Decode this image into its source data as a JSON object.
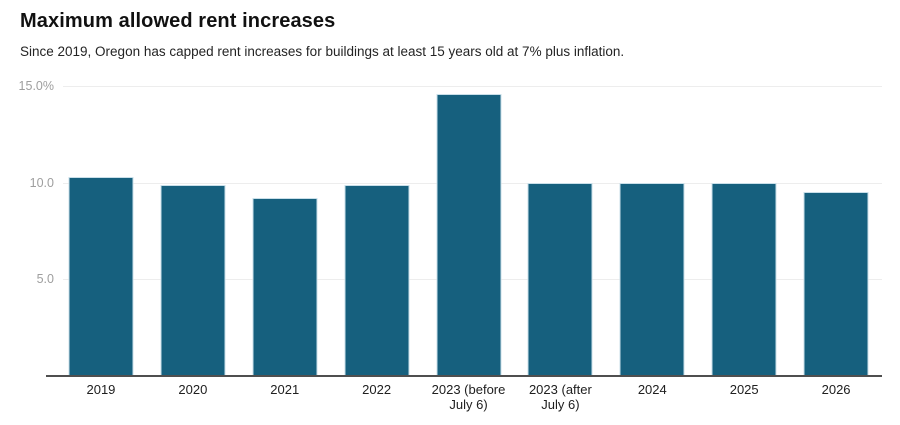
{
  "header": {
    "title": "Maximum allowed rent increases",
    "subtitle": "Since 2019, Oregon has capped rent increases for buildings at least 15 years old at 7% plus inflation."
  },
  "chart_data": {
    "type": "bar",
    "title": "Maximum allowed rent increases",
    "subtitle": "Since 2019, Oregon has capped rent increases for buildings at least 15 years old at 7% plus inflation.",
    "categories": [
      "2019",
      "2020",
      "2021",
      "2022",
      "2023 (before July 6)",
      "2023 (after July 6)",
      "2024",
      "2025",
      "2026"
    ],
    "values": [
      10.3,
      9.9,
      9.2,
      9.9,
      14.6,
      10.0,
      10.0,
      10.0,
      9.5
    ],
    "xlabel": "",
    "ylabel": "",
    "unit": "%",
    "ylim": [
      0,
      15
    ],
    "yticks": [
      5,
      10,
      15
    ],
    "ytick_labels": [
      "5.0",
      "10.0",
      "15.0%"
    ],
    "grid": true,
    "legend": "none",
    "bar_color": "#16607e",
    "bar_stroke_color": "#c9dfe9",
    "gridline_color": "#ededed",
    "axis_line_color": "#4f4f4f",
    "ytick_text_color": "#9e9e9e",
    "xtick_text_color": "#202020"
  }
}
